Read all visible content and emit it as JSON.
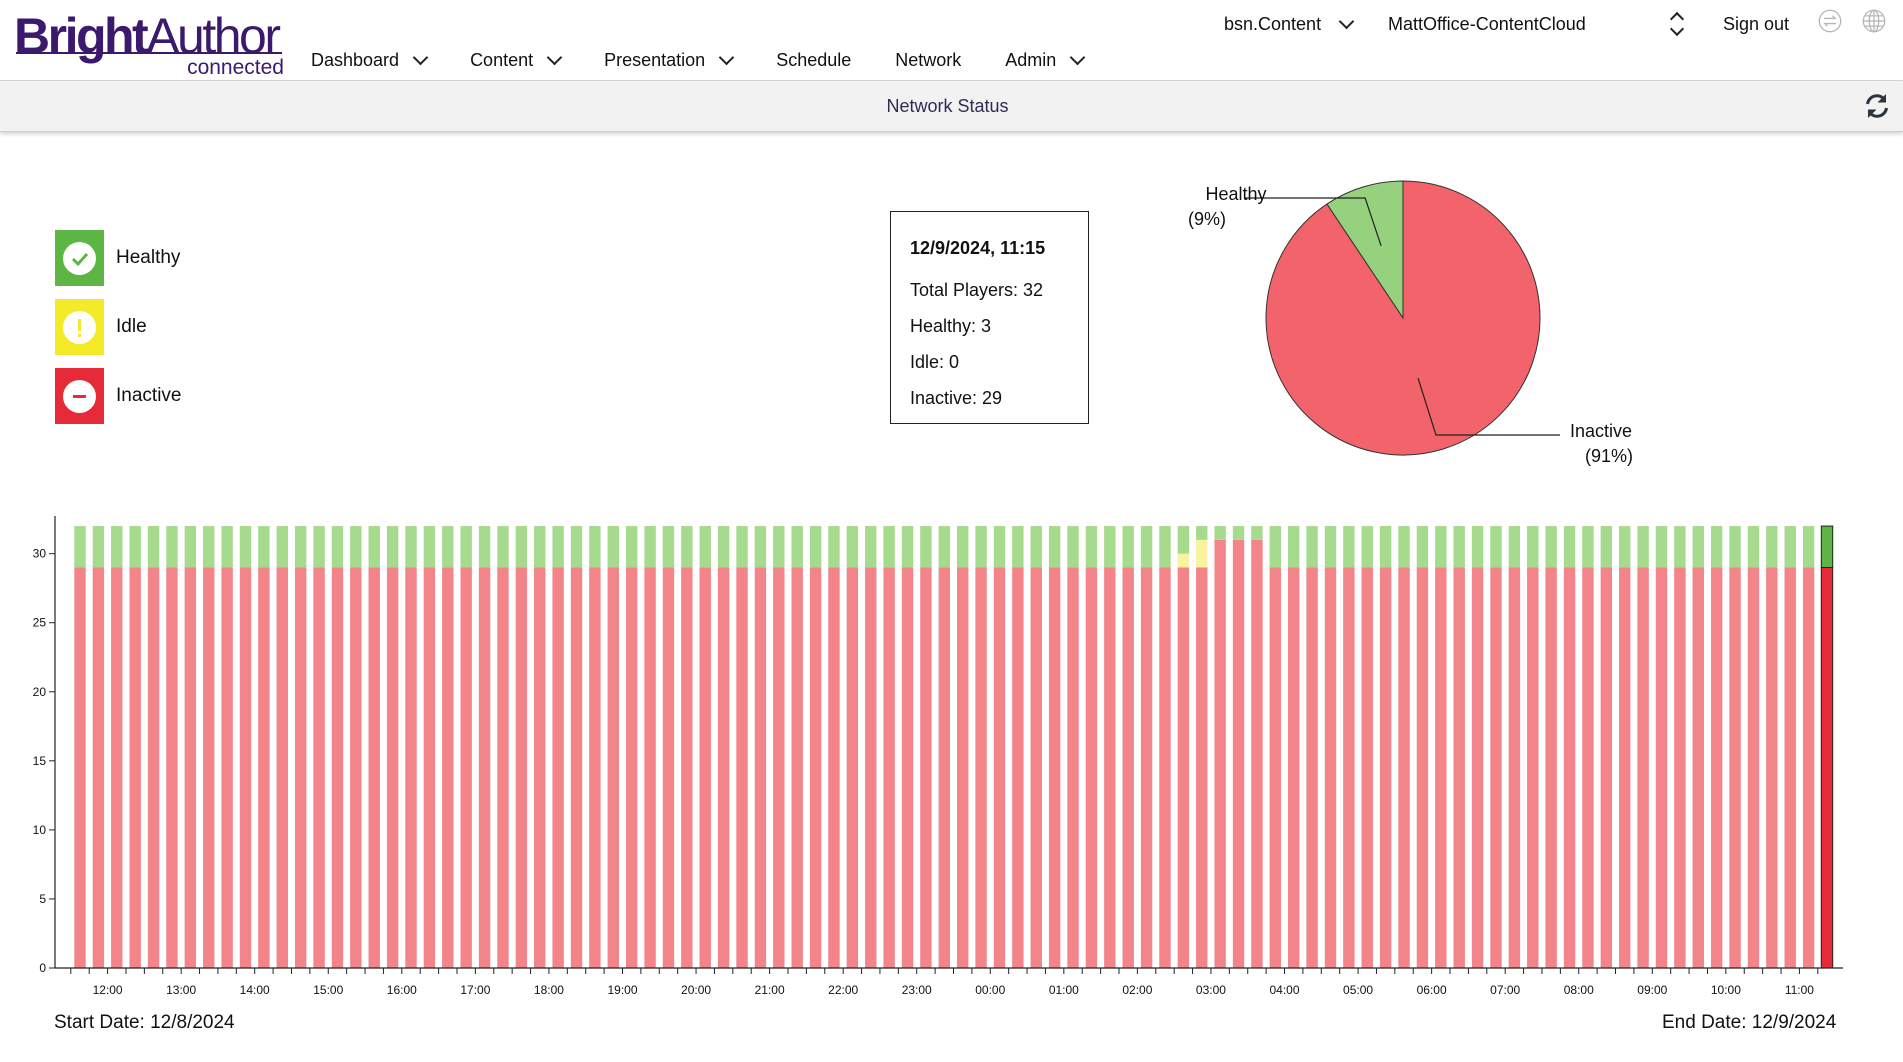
{
  "header": {
    "logo_bright": "Bright",
    "logo_author": "Author",
    "logo_sub": "connected",
    "nav": [
      "Dashboard",
      "Content",
      "Presentation",
      "Schedule",
      "Network",
      "Admin"
    ],
    "account": "bsn.Content",
    "network": "MattOffice-ContentCloud",
    "signout": "Sign out"
  },
  "page": {
    "title": "Network Status"
  },
  "legend": [
    {
      "label": "Healthy",
      "color": "#5db543",
      "icon": "check-icon"
    },
    {
      "label": "Idle",
      "color": "#f5ea2a",
      "icon": "exclamation-icon"
    },
    {
      "label": "Inactive",
      "color": "#e52b38",
      "icon": "minus-icon"
    }
  ],
  "tooltip": {
    "datetime": "12/9/2024, 11:15",
    "total": "Total Players: 32",
    "healthy": "Healthy: 3",
    "idle": "Idle: 0",
    "inactive": "Inactive: 29"
  },
  "chart_data": [
    {
      "type": "pie",
      "slices": [
        {
          "label": "Healthy",
          "percent_label": "(9%)",
          "value": 3,
          "color": "#96d27e"
        },
        {
          "label": "Inactive",
          "percent_label": "(91%)",
          "value": 29,
          "color": "#f2636b"
        }
      ]
    },
    {
      "type": "bar",
      "stacked": true,
      "bars": 96,
      "interval_minutes": 15,
      "x_ticks": [
        "12:00",
        "13:00",
        "14:00",
        "15:00",
        "16:00",
        "17:00",
        "18:00",
        "19:00",
        "20:00",
        "21:00",
        "22:00",
        "23:00",
        "00:00",
        "01:00",
        "02:00",
        "03:00",
        "04:00",
        "05:00",
        "06:00",
        "07:00",
        "08:00",
        "09:00",
        "10:00",
        "11:00"
      ],
      "y_ticks": [
        0,
        5,
        10,
        15,
        20,
        25,
        30
      ],
      "ylim": [
        0,
        32
      ],
      "series": [
        {
          "name": "Inactive",
          "color": "#f2848a",
          "default": 29,
          "overrides": [
            {
              "index": 60,
              "value": 29
            },
            {
              "index": 61,
              "value": 29
            },
            {
              "index": 62,
              "value": 31
            },
            {
              "index": 63,
              "value": 31
            },
            {
              "index": 64,
              "value": 31
            }
          ]
        },
        {
          "name": "Idle",
          "color": "#f8f39c",
          "default": 0,
          "overrides": [
            {
              "index": 60,
              "value": 1
            },
            {
              "index": 61,
              "value": 2
            }
          ]
        },
        {
          "name": "Healthy",
          "color": "#a6da8c",
          "default": 3,
          "overrides": [
            {
              "index": 60,
              "value": 2
            },
            {
              "index": 61,
              "value": 1
            },
            {
              "index": 62,
              "value": 1
            },
            {
              "index": 63,
              "value": 1
            },
            {
              "index": 64,
              "value": 1
            }
          ]
        }
      ],
      "selected_bar": {
        "index": 95,
        "healthy_color": "#5db543",
        "inactive_color": "#e52b38"
      },
      "start_label": "Start Date: 12/8/2024",
      "end_label": "End Date: 12/9/2024"
    }
  ]
}
